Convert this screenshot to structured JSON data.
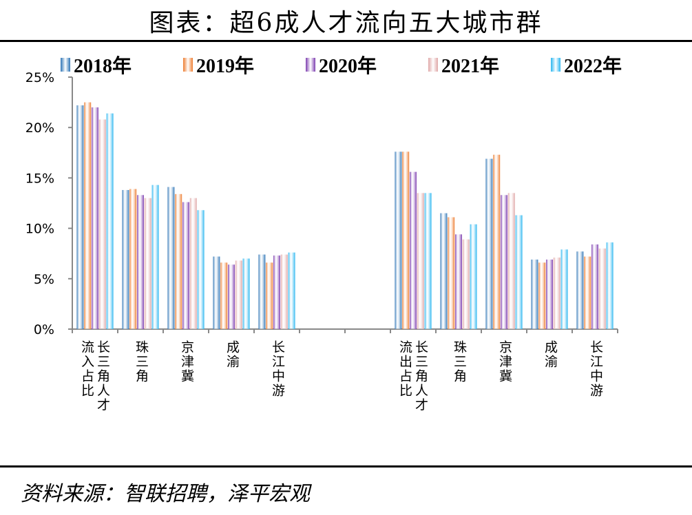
{
  "title": "图表：超6成人才流向五大城市群",
  "source": "资料来源：智联招聘，泽平宏观",
  "chart_data": {
    "type": "bar",
    "title": "图表：超6成人才流向五大城市群",
    "ylabel": "",
    "xlabel": "",
    "ylim": [
      0,
      25
    ],
    "yticks": [
      "0%",
      "5%",
      "10%",
      "15%",
      "20%",
      "25%"
    ],
    "legend_position": "top",
    "categories": [
      "长三角人才流入占比",
      "珠三角",
      "京津冀",
      "成渝",
      "长江中游",
      "",
      "",
      "长三角人才流出占比",
      "珠三角",
      "京津冀",
      "成渝",
      "长江中游"
    ],
    "series": [
      {
        "name": "2018年",
        "color": "#2e75b6",
        "values": [
          22.2,
          13.8,
          14.1,
          7.2,
          7.4,
          null,
          null,
          17.6,
          11.5,
          16.9,
          6.9,
          7.7
        ]
      },
      {
        "name": "2019年",
        "color": "#ed7d31",
        "values": [
          22.5,
          13.9,
          13.4,
          6.6,
          6.6,
          null,
          null,
          17.6,
          11.1,
          17.3,
          6.6,
          7.2
        ]
      },
      {
        "name": "2020年",
        "color": "#7e3fb0",
        "values": [
          22.0,
          13.3,
          12.6,
          6.4,
          7.3,
          null,
          null,
          15.6,
          9.4,
          13.3,
          6.9,
          8.4
        ]
      },
      {
        "name": "2021年",
        "color": "#e0a8a8",
        "values": [
          20.8,
          13.0,
          13.0,
          6.8,
          7.4,
          null,
          null,
          13.5,
          8.9,
          13.5,
          7.1,
          8.0
        ]
      },
      {
        "name": "2022年",
        "color": "#29b6f0",
        "values": [
          21.4,
          14.3,
          11.8,
          7.0,
          7.6,
          null,
          null,
          13.5,
          10.4,
          11.3,
          7.9,
          8.6
        ]
      }
    ]
  }
}
